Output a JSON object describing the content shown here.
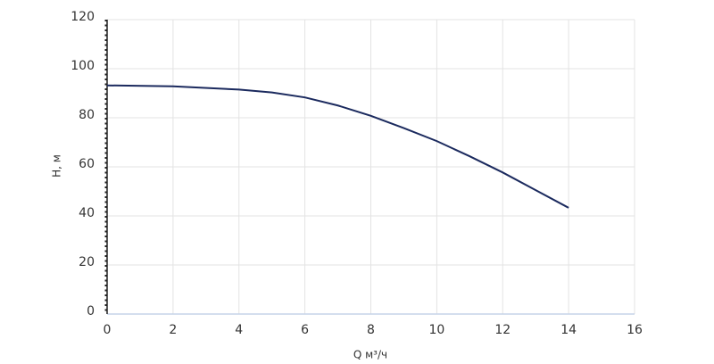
{
  "chart_data": {
    "type": "line",
    "x_label": "Q м³/ч",
    "y_label": "H, м",
    "series": [
      {
        "name": "H",
        "color": "#1b2a5e",
        "x": [
          0,
          2,
          4,
          5,
          6,
          7,
          8,
          9,
          10,
          11,
          12,
          13,
          14
        ],
        "values": [
          93.2,
          92.8,
          91.5,
          90.3,
          88.3,
          85,
          80.8,
          75.8,
          70.5,
          64.3,
          57.7,
          50.5,
          43.3
        ]
      }
    ],
    "xlim": [
      0,
      16
    ],
    "xticks": [
      0,
      2,
      4,
      6,
      8,
      10,
      12,
      14,
      16
    ],
    "ylim": [
      0,
      120
    ],
    "yticks": [
      0,
      20,
      40,
      60,
      80,
      100,
      120
    ],
    "grid": true
  }
}
